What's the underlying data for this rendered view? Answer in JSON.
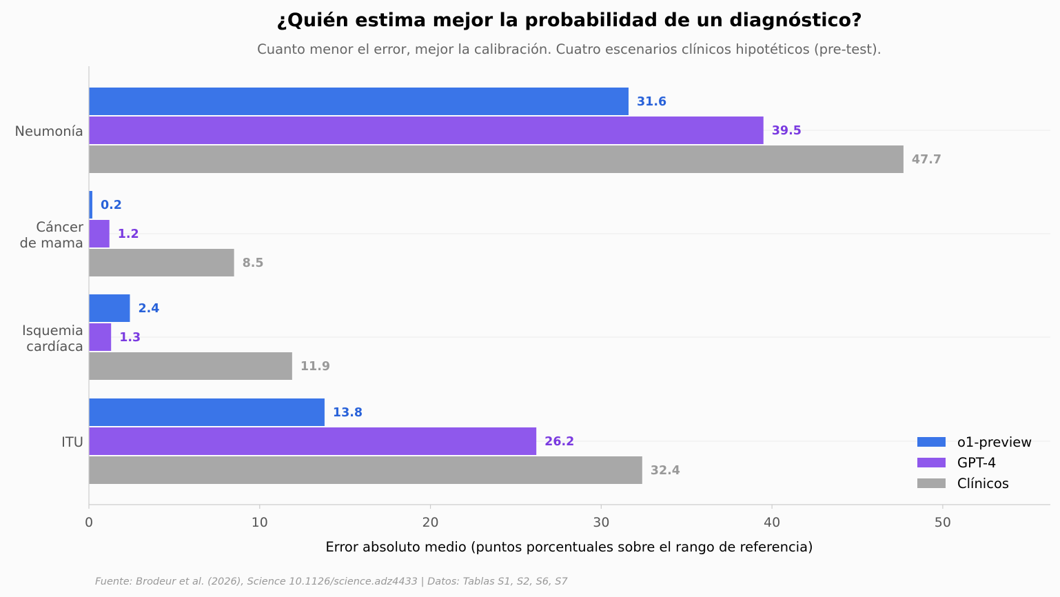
{
  "chart_data": {
    "type": "bar",
    "orientation": "horizontal",
    "title": "¿Quién estima mejor la probabilidad de un diagnóstico?",
    "subtitle": "Cuanto menor el error, mejor la calibración. Cuatro escenarios clínicos hipotéticos (pre-test).",
    "xlabel": "Error absoluto medio (puntos porcentuales sobre el rango de referencia)",
    "xlim": [
      0,
      56.3
    ],
    "xticks": [
      "0",
      "10",
      "20",
      "30",
      "40",
      "50"
    ],
    "grid": "horizontal, light",
    "legend_position": "bottom-right",
    "categories": [
      {
        "line1": "Neumonía",
        "line2": ""
      },
      {
        "line1": "Cáncer",
        "line2": "de mama"
      },
      {
        "line1": "Isquemia",
        "line2": "cardíaca"
      },
      {
        "line1": "ITU",
        "line2": ""
      }
    ],
    "series": [
      {
        "name": "o1-preview",
        "color": "#3a75e8",
        "label_color": "#2962d9",
        "values": [
          31.6,
          0.2,
          2.4,
          13.8
        ],
        "labels": [
          "31.6",
          "0.2",
          "2.4",
          "13.8"
        ]
      },
      {
        "name": "GPT-4",
        "color": "#8f58ec",
        "label_color": "#7a3ae0",
        "values": [
          39.5,
          1.2,
          1.3,
          26.2
        ],
        "labels": [
          "39.5",
          "1.2",
          "1.3",
          "26.2"
        ]
      },
      {
        "name": "Clínicos",
        "color": "#a8a8a8",
        "label_color": "#999999",
        "values": [
          47.7,
          8.5,
          11.9,
          32.4
        ],
        "labels": [
          "47.7",
          "8.5",
          "11.9",
          "32.4"
        ]
      }
    ],
    "source": "Fuente: Brodeur et al. (2026), Science 10.1126/science.adz4433 | Datos: Tablas S1, S2, S6, S7"
  }
}
